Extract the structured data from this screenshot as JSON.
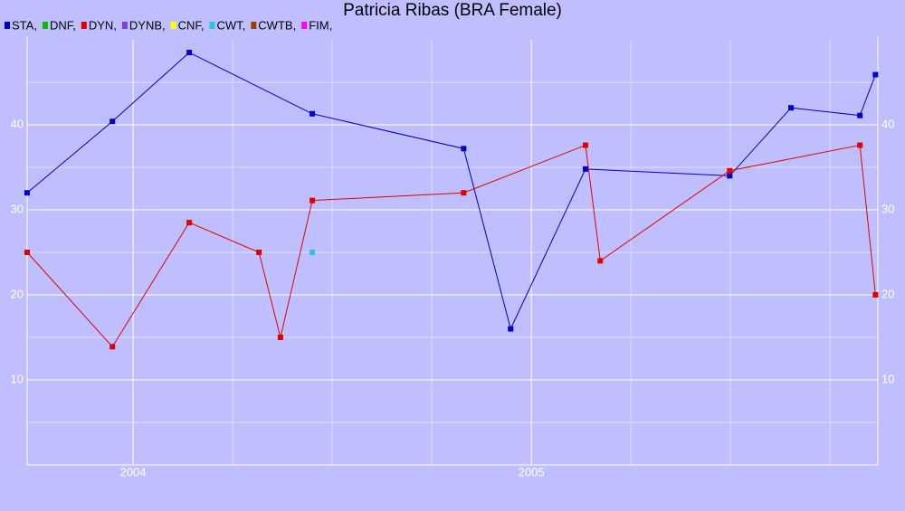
{
  "chart_data": {
    "type": "line",
    "title": "Patricia Ribas (BRA Female)",
    "xlim": [
      2003.734,
      2005.87
    ],
    "xticks": [
      2004,
      2005
    ],
    "xminor_ticks": [
      2004.25,
      2004.5,
      2004.75,
      2005.25,
      2005.5,
      2005.75
    ],
    "ylim": [
      0,
      50
    ],
    "yticks": [
      10,
      20,
      30,
      40
    ],
    "yminor_ticks": [
      5,
      15,
      25,
      35,
      45
    ],
    "grid": true,
    "legend": "top-left",
    "series": [
      {
        "name": "STA,",
        "color": "#0000cc",
        "x": [
          2003.734,
          2003.948,
          2004.141,
          2004.45,
          2004.83,
          2004.948,
          2005.136,
          2005.498,
          2005.652,
          2005.825,
          2005.864
        ],
        "values": [
          32.0,
          40.4,
          48.5,
          41.3,
          37.2,
          16.0,
          34.8,
          34.0,
          42.0,
          41.1,
          45.9
        ]
      },
      {
        "name": "DNF,",
        "color": "#00c000",
        "x": [],
        "values": []
      },
      {
        "name": "DYN,",
        "color": "#e00000",
        "x": [
          2003.734,
          2003.948,
          2004.141,
          2004.316,
          2004.37,
          2004.45,
          2004.83,
          2005.136,
          2005.173,
          2005.498,
          2005.825,
          2005.864
        ],
        "values": [
          25.0,
          13.9,
          28.5,
          25.0,
          15.0,
          31.1,
          32.0,
          37.6,
          24.0,
          34.6,
          37.6,
          20.0
        ]
      },
      {
        "name": "DYNB,",
        "color": "#7f3fe0",
        "x": [],
        "values": []
      },
      {
        "name": "CNF,",
        "color": "#ffff00",
        "x": [],
        "values": []
      },
      {
        "name": "CWT,",
        "color": "#30c0e0",
        "x": [
          2004.45
        ],
        "values": [
          25.0
        ]
      },
      {
        "name": "CWTB,",
        "color": "#a04000",
        "x": [],
        "values": []
      },
      {
        "name": "FIM,",
        "color": "#ff00ff",
        "x": [],
        "values": []
      }
    ]
  }
}
